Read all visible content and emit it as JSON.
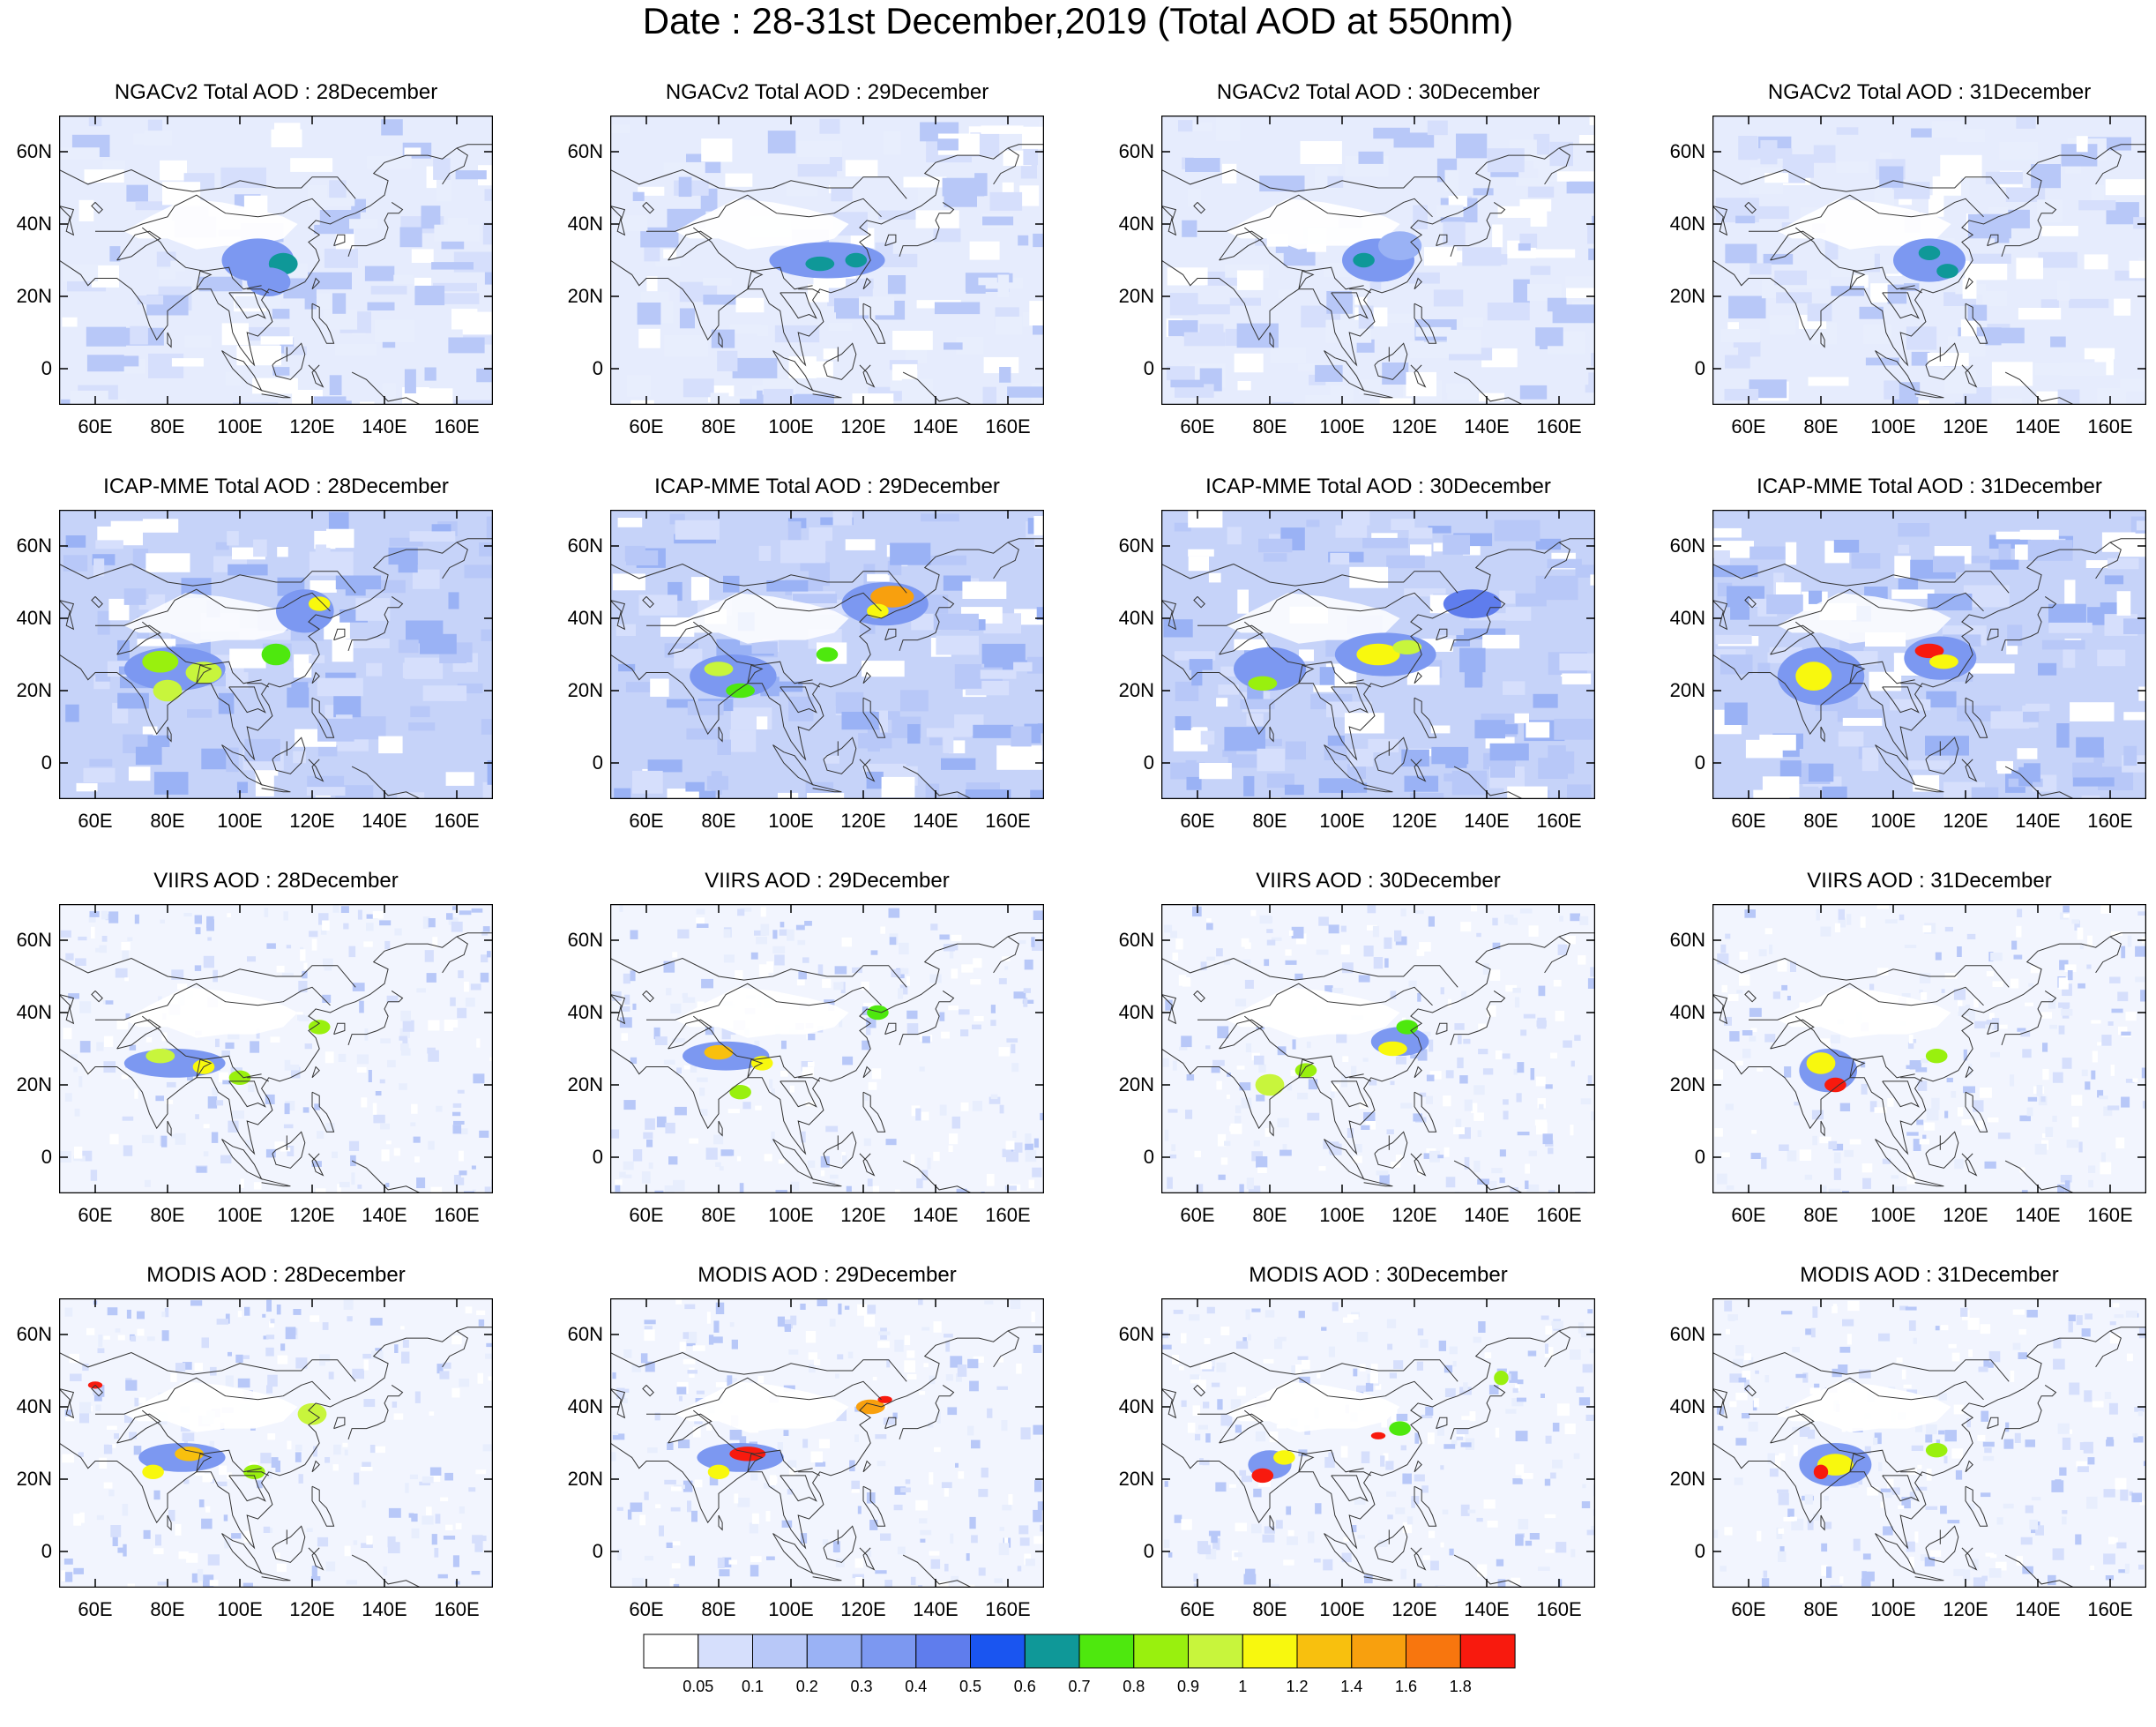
{
  "title": "Date : 28-31st December,2019 (Total AOD at 550nm)",
  "rows": [
    {
      "product": "NGACv2",
      "titles": [
        "NGACv2 Total AOD : 28December",
        "NGACv2 Total AOD : 29December",
        "NGACv2 Total AOD : 30December",
        "NGACv2 Total AOD : 31December"
      ]
    },
    {
      "product": "ICAP-MME",
      "titles": [
        "ICAP-MME Total AOD : 28December",
        "ICAP-MME Total AOD : 29December",
        "ICAP-MME Total AOD : 30December",
        "ICAP-MME Total AOD : 31December"
      ]
    },
    {
      "product": "VIIRS",
      "titles": [
        "VIIRS AOD : 28December",
        "VIIRS AOD : 29December",
        "VIIRS AOD : 30December",
        "VIIRS AOD : 31December"
      ]
    },
    {
      "product": "MODIS",
      "titles": [
        "MODIS AOD : 28December",
        "MODIS AOD : 29December",
        "MODIS AOD : 30December",
        "MODIS AOD : 31December"
      ]
    }
  ],
  "axes": {
    "lat_ticks": [
      "60N",
      "40N",
      "20N",
      "0"
    ],
    "lat_values": [
      60,
      40,
      20,
      0
    ],
    "lon_ticks": [
      "60E",
      "80E",
      "100E",
      "120E",
      "140E",
      "160E"
    ],
    "lon_values": [
      60,
      80,
      100,
      120,
      140,
      160
    ],
    "lat_range": [
      -10,
      70
    ],
    "lon_range": [
      50,
      170
    ]
  },
  "colorbar": {
    "colors": [
      "#ffffff",
      "#d6dffc",
      "#b8c8f8",
      "#9ab2f5",
      "#7c98f1",
      "#5f7ded",
      "#1a55f0",
      "#0f9898",
      "#4ee80e",
      "#99f00e",
      "#c8f53c",
      "#f8f80e",
      "#f8c00e",
      "#f8a00e",
      "#f8760e",
      "#f81a0e"
    ],
    "labels": [
      "0.05",
      "0.1",
      "0.2",
      "0.3",
      "0.4",
      "0.5",
      "0.6",
      "0.7",
      "0.8",
      "0.9",
      "1",
      "1.2",
      "1.4",
      "1.6",
      "1.8"
    ]
  },
  "hotspots": [
    [
      [
        [
          105,
          30,
          10,
          6,
          "#7c98f1"
        ],
        [
          112,
          29,
          4,
          3,
          "#0f9898"
        ],
        [
          108,
          24,
          6,
          4,
          "#7c98f1"
        ]
      ],
      [
        [
          110,
          30,
          16,
          5,
          "#7c98f1"
        ],
        [
          108,
          29,
          4,
          2,
          "#0f9898"
        ],
        [
          118,
          30,
          3,
          2,
          "#0f9898"
        ]
      ],
      [
        [
          110,
          30,
          10,
          6,
          "#7c98f1"
        ],
        [
          106,
          30,
          3,
          2,
          "#0f9898"
        ],
        [
          116,
          34,
          6,
          4,
          "#9ab2f5"
        ]
      ],
      [
        [
          110,
          30,
          10,
          6,
          "#7c98f1"
        ],
        [
          110,
          32,
          3,
          2,
          "#0f9898"
        ],
        [
          115,
          27,
          3,
          2,
          "#0f9898"
        ]
      ]
    ],
    [
      [
        [
          82,
          26,
          14,
          6,
          "#7c98f1"
        ],
        [
          78,
          28,
          5,
          3,
          "#99f00e"
        ],
        [
          90,
          25,
          5,
          3,
          "#c8f53c"
        ],
        [
          80,
          20,
          4,
          3,
          "#c8f53c"
        ],
        [
          118,
          42,
          8,
          6,
          "#7c98f1"
        ],
        [
          122,
          44,
          3,
          2,
          "#f8f80e"
        ],
        [
          110,
          30,
          4,
          3,
          "#4ee80e"
        ]
      ],
      [
        [
          126,
          44,
          12,
          6,
          "#7c98f1"
        ],
        [
          128,
          46,
          6,
          3,
          "#f8a00e"
        ],
        [
          124,
          42,
          3,
          2,
          "#f8f80e"
        ],
        [
          110,
          30,
          3,
          2,
          "#4ee80e"
        ],
        [
          84,
          24,
          12,
          6,
          "#7c98f1"
        ],
        [
          80,
          26,
          4,
          2,
          "#c8f53c"
        ],
        [
          86,
          20,
          4,
          2,
          "#4ee80e"
        ]
      ],
      [
        [
          112,
          30,
          14,
          6,
          "#7c98f1"
        ],
        [
          110,
          30,
          6,
          3,
          "#f8f80e"
        ],
        [
          118,
          32,
          4,
          2,
          "#c8f53c"
        ],
        [
          80,
          26,
          10,
          6,
          "#7c98f1"
        ],
        [
          78,
          22,
          4,
          2,
          "#99f00e"
        ],
        [
          136,
          44,
          8,
          4,
          "#5f7ded"
        ]
      ],
      [
        [
          80,
          24,
          12,
          8,
          "#7c98f1"
        ],
        [
          78,
          24,
          5,
          4,
          "#f8f80e"
        ],
        [
          113,
          29,
          10,
          6,
          "#7c98f1"
        ],
        [
          110,
          31,
          4,
          2,
          "#f81a0e"
        ],
        [
          114,
          28,
          4,
          2,
          "#f8f80e"
        ]
      ]
    ],
    [
      [
        [
          82,
          26,
          14,
          4,
          "#7c98f1"
        ],
        [
          78,
          28,
          4,
          2,
          "#c8f53c"
        ],
        [
          90,
          25,
          3,
          2,
          "#f8f80e"
        ],
        [
          100,
          22,
          3,
          2,
          "#99f00e"
        ],
        [
          122,
          36,
          3,
          2,
          "#99f00e"
        ]
      ],
      [
        [
          82,
          28,
          12,
          4,
          "#7c98f1"
        ],
        [
          80,
          29,
          4,
          2,
          "#f8c00e"
        ],
        [
          92,
          26,
          3,
          2,
          "#f8f80e"
        ],
        [
          124,
          40,
          3,
          2,
          "#4ee80e"
        ],
        [
          86,
          18,
          3,
          2,
          "#99f00e"
        ]
      ],
      [
        [
          116,
          32,
          8,
          4,
          "#7c98f1"
        ],
        [
          114,
          30,
          4,
          2,
          "#f8f80e"
        ],
        [
          80,
          20,
          4,
          3,
          "#c8f53c"
        ],
        [
          90,
          24,
          3,
          2,
          "#99f00e"
        ],
        [
          118,
          36,
          3,
          2,
          "#4ee80e"
        ]
      ],
      [
        [
          82,
          24,
          8,
          6,
          "#7c98f1"
        ],
        [
          80,
          26,
          4,
          3,
          "#f8f80e"
        ],
        [
          84,
          20,
          3,
          2,
          "#f81a0e"
        ],
        [
          112,
          28,
          3,
          2,
          "#99f00e"
        ]
      ]
    ],
    [
      [
        [
          84,
          26,
          12,
          4,
          "#7c98f1"
        ],
        [
          86,
          27,
          4,
          2,
          "#f8c00e"
        ],
        [
          76,
          22,
          3,
          2,
          "#f8f80e"
        ],
        [
          120,
          38,
          4,
          3,
          "#c8f53c"
        ],
        [
          60,
          46,
          2,
          1,
          "#f81a0e"
        ],
        [
          104,
          22,
          3,
          2,
          "#99f00e"
        ]
      ],
      [
        [
          86,
          26,
          12,
          4,
          "#7c98f1"
        ],
        [
          88,
          27,
          5,
          2,
          "#f81a0e"
        ],
        [
          80,
          22,
          3,
          2,
          "#f8f80e"
        ],
        [
          122,
          40,
          4,
          2,
          "#f8a00e"
        ],
        [
          126,
          42,
          2,
          1,
          "#f81a0e"
        ]
      ],
      [
        [
          80,
          24,
          6,
          4,
          "#7c98f1"
        ],
        [
          78,
          21,
          3,
          2,
          "#f81a0e"
        ],
        [
          84,
          26,
          3,
          2,
          "#f8f80e"
        ],
        [
          116,
          34,
          3,
          2,
          "#4ee80e"
        ],
        [
          144,
          48,
          2,
          2,
          "#99f00e"
        ],
        [
          110,
          32,
          2,
          1,
          "#f81a0e"
        ]
      ],
      [
        [
          84,
          24,
          10,
          6,
          "#7c98f1"
        ],
        [
          84,
          24,
          5,
          3,
          "#f8f80e"
        ],
        [
          80,
          22,
          2,
          2,
          "#f81a0e"
        ],
        [
          112,
          28,
          3,
          2,
          "#99f00e"
        ]
      ]
    ]
  ]
}
